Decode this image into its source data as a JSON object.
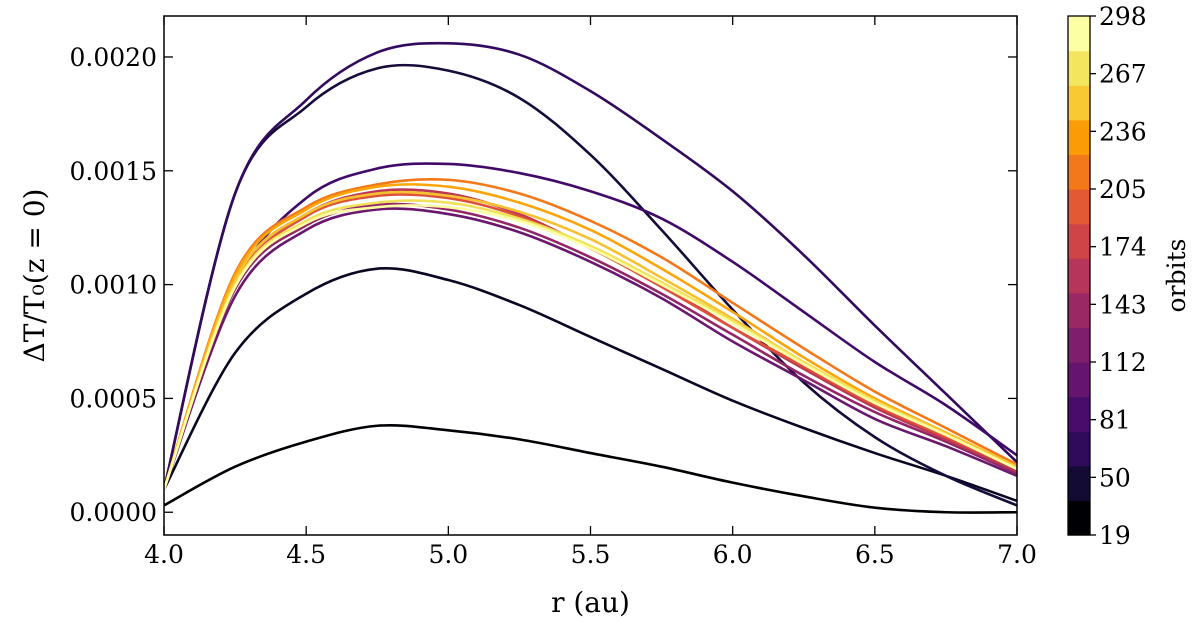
{
  "chart_data": {
    "type": "line",
    "xlabel": "r (au)",
    "ylabel": "ΔT/T₀(z = 0)",
    "xlim": [
      4.0,
      7.0
    ],
    "ylim": [
      -0.0001,
      0.00218
    ],
    "x_ticks": [
      4.0,
      4.5,
      5.0,
      5.5,
      6.0,
      6.5,
      7.0
    ],
    "x_tick_labels": [
      "4.0",
      "4.5",
      "5.0",
      "5.5",
      "6.0",
      "6.5",
      "7.0"
    ],
    "y_ticks": [
      0.0,
      0.0005,
      0.001,
      0.0015,
      0.002
    ],
    "y_tick_labels": [
      "0.0000",
      "0.0005",
      "0.0010",
      "0.0015",
      "0.0020"
    ],
    "grid": false,
    "colorbar": {
      "label": "orbits",
      "range": [
        19,
        298
      ],
      "tick_values": [
        19,
        50,
        81,
        112,
        143,
        174,
        205,
        236,
        267,
        298
      ],
      "tick_labels": [
        "19",
        "50",
        "81",
        "112",
        "143",
        "174",
        "205",
        "236",
        "267",
        "298"
      ],
      "bands": [
        "#000004",
        "#140b34",
        "#300a5b",
        "#4a0c6b",
        "#65156e",
        "#7f1e6c",
        "#9a2865",
        "#b5365a",
        "#cf4446",
        "#e35933",
        "#f37819",
        "#fb9b06",
        "#f8c932",
        "#f3e55d",
        "#fcffa4"
      ]
    },
    "x": [
      4.0,
      4.25,
      4.5,
      4.75,
      5.0,
      5.25,
      5.5,
      5.75,
      6.0,
      6.25,
      6.5,
      6.75,
      7.0
    ],
    "series": [
      {
        "orbit": 19,
        "color": "#000004",
        "values": [
          3e-05,
          0.0002,
          0.00031,
          0.00038,
          0.00036,
          0.00032,
          0.00026,
          0.0002,
          0.00013,
          7e-05,
          2e-05,
          0.0,
          0.0
        ]
      },
      {
        "orbit": 30,
        "color": "#0a0722",
        "values": [
          0.0001,
          0.0007,
          0.00096,
          0.00107,
          0.00102,
          0.00091,
          0.00077,
          0.00063,
          0.00049,
          0.00037,
          0.00026,
          0.00016,
          5e-05
        ]
      },
      {
        "orbit": 40,
        "color": "#160b39",
        "values": [
          0.0001,
          0.0014,
          0.00178,
          0.00195,
          0.00194,
          0.00182,
          0.00157,
          0.00124,
          0.00089,
          0.00057,
          0.00033,
          0.00016,
          3e-05
        ]
      },
      {
        "orbit": 55,
        "color": "#320a5e",
        "values": [
          0.0001,
          0.0014,
          0.00181,
          0.00202,
          0.00206,
          0.00201,
          0.00185,
          0.00164,
          0.00141,
          0.00113,
          0.00082,
          0.00052,
          0.00022
        ]
      },
      {
        "orbit": 70,
        "color": "#420a68",
        "values": [
          0.0001,
          0.001,
          0.00138,
          0.00151,
          0.00153,
          0.00149,
          0.00141,
          0.00129,
          0.0011,
          0.00088,
          0.00066,
          0.00047,
          0.00025
        ]
      },
      {
        "orbit": 100,
        "color": "#6a176e",
        "values": [
          0.0001,
          0.00095,
          0.00124,
          0.00133,
          0.00131,
          0.00123,
          0.0011,
          0.00094,
          0.00075,
          0.00058,
          0.00041,
          0.00029,
          0.00016
        ]
      },
      {
        "orbit": 130,
        "color": "#932667",
        "values": [
          0.0001,
          0.00098,
          0.00126,
          0.00135,
          0.00133,
          0.00125,
          0.00112,
          0.00096,
          0.00078,
          0.0006,
          0.00044,
          0.00031,
          0.00017
        ]
      },
      {
        "orbit": 160,
        "color": "#bc3754",
        "values": [
          0.0001,
          0.00102,
          0.00131,
          0.00141,
          0.0014,
          0.00131,
          0.00116,
          0.001,
          0.00081,
          0.00063,
          0.00046,
          0.00032,
          0.00018
        ]
      },
      {
        "orbit": 190,
        "color": "#dd513a",
        "values": [
          0.0001,
          0.001,
          0.0013,
          0.00139,
          0.00138,
          0.0013,
          0.00116,
          0.00099,
          0.00081,
          0.00064,
          0.00047,
          0.00033,
          0.00019
        ]
      },
      {
        "orbit": 215,
        "color": "#f37819",
        "values": [
          0.0001,
          0.00105,
          0.00134,
          0.00144,
          0.00146,
          0.0014,
          0.00128,
          0.00112,
          0.00092,
          0.00072,
          0.00053,
          0.00037,
          0.00021
        ]
      },
      {
        "orbit": 236,
        "color": "#fca50a",
        "values": [
          0.0001,
          0.00104,
          0.00133,
          0.00143,
          0.00143,
          0.00136,
          0.00124,
          0.00107,
          0.00088,
          0.00068,
          0.0005,
          0.00035,
          0.0002
        ]
      },
      {
        "orbit": 255,
        "color": "#f6c130",
        "values": [
          0.0001,
          0.00102,
          0.00131,
          0.0014,
          0.00139,
          0.00132,
          0.0012,
          0.00103,
          0.00085,
          0.00066,
          0.00049,
          0.00035,
          0.0002
        ]
      },
      {
        "orbit": 275,
        "color": "#f1e05a",
        "values": [
          0.0001,
          0.001,
          0.00128,
          0.00136,
          0.00136,
          0.00129,
          0.00117,
          0.00101,
          0.00084,
          0.00066,
          0.00049,
          0.00034,
          0.00019
        ]
      },
      {
        "orbit": 298,
        "color": "#fcffa4",
        "values": [
          0.0001,
          0.00099,
          0.00127,
          0.00134,
          0.00134,
          0.00128,
          0.00116,
          0.001,
          0.00083,
          0.00065,
          0.00048,
          0.00034,
          0.00019
        ]
      }
    ]
  }
}
